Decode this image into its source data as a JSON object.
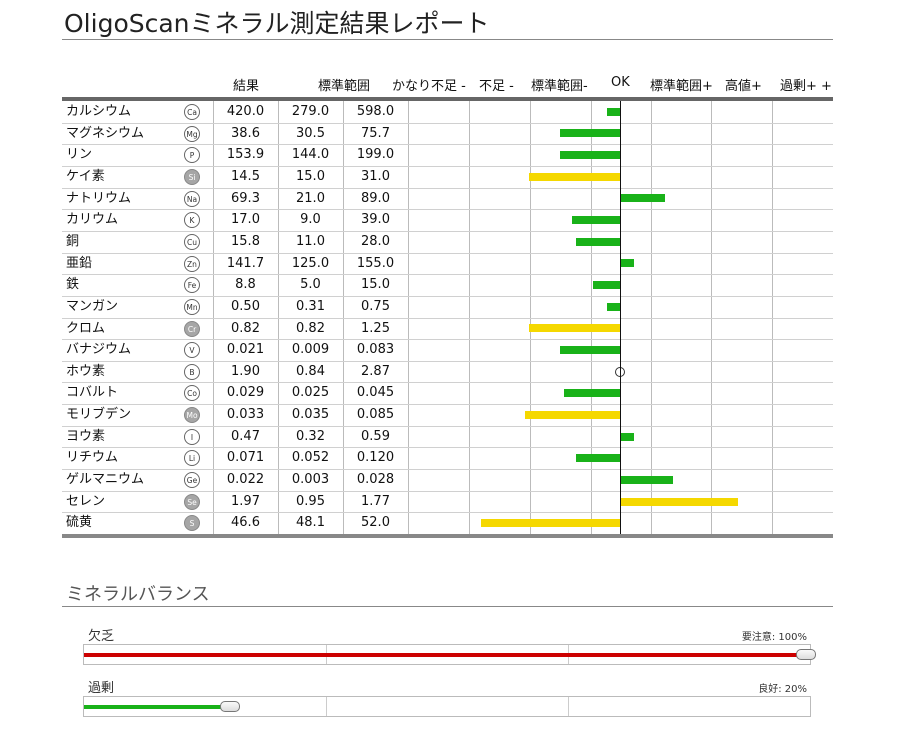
{
  "report": {
    "title": "OligoScanミネラル測定結果レポート"
  },
  "table": {
    "headers": {
      "result": "結果",
      "reference": "標準範囲",
      "scale": [
        "かなり不足 -",
        "不足 -",
        "標準範囲-",
        "OK",
        "標準範囲+",
        "高値+",
        "過剰+ +"
      ]
    }
  },
  "chart_data": {
    "type": "bar",
    "orientation": "horizontal",
    "baseline_label": "OK",
    "scale_labels": [
      "かなり不足 -",
      "不足 -",
      "標準範囲-",
      "OK",
      "標準範囲+",
      "高値+",
      "過剰+ +"
    ],
    "scale_range": [
      -3,
      3
    ],
    "colors": {
      "normal": "#19b219",
      "warning": "#f5d800"
    },
    "rows": [
      {
        "name": "カルシウム",
        "symbol": "Ca",
        "symbol_dark": false,
        "result": "420.0",
        "ref_min": "279.0",
        "ref_max": "598.0",
        "deviation": -0.22,
        "status": "normal"
      },
      {
        "name": "マグネシウム",
        "symbol": "Mg",
        "symbol_dark": false,
        "result": "38.6",
        "ref_min": "30.5",
        "ref_max": "75.7",
        "deviation": -1.0,
        "status": "normal"
      },
      {
        "name": "リン",
        "symbol": "P",
        "symbol_dark": false,
        "result": "153.9",
        "ref_min": "144.0",
        "ref_max": "199.0",
        "deviation": -1.0,
        "status": "normal"
      },
      {
        "name": "ケイ素",
        "symbol": "Si",
        "symbol_dark": true,
        "result": "14.5",
        "ref_min": "15.0",
        "ref_max": "31.0",
        "deviation": -1.5,
        "status": "warning"
      },
      {
        "name": "ナトリウム",
        "symbol": "Na",
        "symbol_dark": false,
        "result": "69.3",
        "ref_min": "21.0",
        "ref_max": "89.0",
        "deviation": 0.72,
        "status": "normal"
      },
      {
        "name": "カリウム",
        "symbol": "K",
        "symbol_dark": false,
        "result": "17.0",
        "ref_min": "9.0",
        "ref_max": "39.0",
        "deviation": -0.8,
        "status": "normal"
      },
      {
        "name": "銅",
        "symbol": "Cu",
        "symbol_dark": false,
        "result": "15.8",
        "ref_min": "11.0",
        "ref_max": "28.0",
        "deviation": -0.72,
        "status": "normal"
      },
      {
        "name": "亜鉛",
        "symbol": "Zn",
        "symbol_dark": false,
        "result": "141.7",
        "ref_min": "125.0",
        "ref_max": "155.0",
        "deviation": 0.22,
        "status": "normal"
      },
      {
        "name": "鉄",
        "symbol": "Fe",
        "symbol_dark": false,
        "result": "8.8",
        "ref_min": "5.0",
        "ref_max": "15.0",
        "deviation": -0.44,
        "status": "normal"
      },
      {
        "name": "マンガン",
        "symbol": "Mn",
        "symbol_dark": false,
        "result": "0.50",
        "ref_min": "0.31",
        "ref_max": "0.75",
        "deviation": -0.22,
        "status": "normal"
      },
      {
        "name": "クロム",
        "symbol": "Cr",
        "symbol_dark": true,
        "result": "0.82",
        "ref_min": "0.82",
        "ref_max": "1.25",
        "deviation": -1.5,
        "status": "warning"
      },
      {
        "name": "バナジウム",
        "symbol": "V",
        "symbol_dark": false,
        "result": "0.021",
        "ref_min": "0.009",
        "ref_max": "0.083",
        "deviation": -1.0,
        "status": "normal"
      },
      {
        "name": "ホウ素",
        "symbol": "B",
        "symbol_dark": false,
        "result": "1.90",
        "ref_min": "0.84",
        "ref_max": "2.87",
        "deviation": 0,
        "status": "ok"
      },
      {
        "name": "コバルト",
        "symbol": "Co",
        "symbol_dark": false,
        "result": "0.029",
        "ref_min": "0.025",
        "ref_max": "0.045",
        "deviation": -0.93,
        "status": "normal"
      },
      {
        "name": "モリブデン",
        "symbol": "Mo",
        "symbol_dark": true,
        "result": "0.033",
        "ref_min": "0.035",
        "ref_max": "0.085",
        "deviation": -1.57,
        "status": "warning"
      },
      {
        "name": "ヨウ素",
        "symbol": "I",
        "symbol_dark": false,
        "result": "0.47",
        "ref_min": "0.32",
        "ref_max": "0.59",
        "deviation": 0.22,
        "status": "normal"
      },
      {
        "name": "リチウム",
        "symbol": "Li",
        "symbol_dark": false,
        "result": "0.071",
        "ref_min": "0.052",
        "ref_max": "0.120",
        "deviation": -0.72,
        "status": "normal"
      },
      {
        "name": "ゲルマニウム",
        "symbol": "Ge",
        "symbol_dark": false,
        "result": "0.022",
        "ref_min": "0.003",
        "ref_max": "0.028",
        "deviation": 0.86,
        "status": "normal"
      },
      {
        "name": "セレン",
        "symbol": "Se",
        "symbol_dark": true,
        "result": "1.97",
        "ref_min": "0.95",
        "ref_max": "1.77",
        "deviation": 1.93,
        "status": "warning"
      },
      {
        "name": "硫黄",
        "symbol": "S",
        "symbol_dark": true,
        "result": "46.6",
        "ref_min": "48.1",
        "ref_max": "52.0",
        "deviation": -2.3,
        "status": "warning"
      }
    ]
  },
  "balance": {
    "title": "ミネラルバランス",
    "deficiency": {
      "label": "欠乏",
      "status": "要注意: 100%",
      "level": 1.0,
      "color": "#cc0000"
    },
    "excess": {
      "label": "過剰",
      "status": "良好: 20%",
      "level": 0.2,
      "color": "#19b219"
    }
  }
}
